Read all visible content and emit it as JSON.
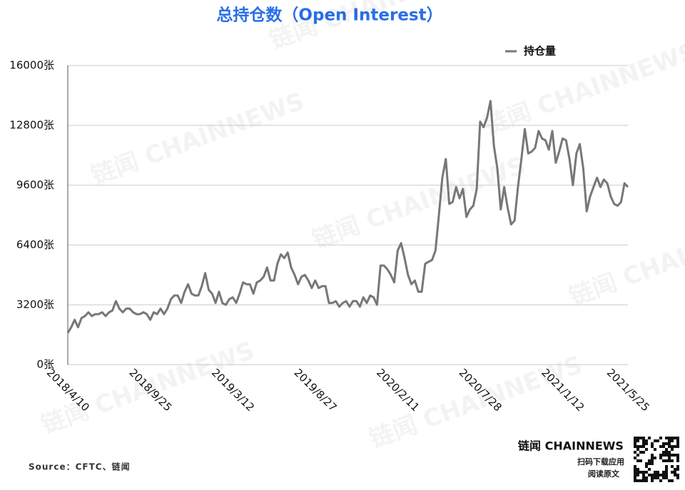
{
  "chart_data": {
    "type": "line",
    "title": "总持仓数（Open Interest）",
    "source": "Source：CFTC、链闻",
    "watermark": "链闻 CHAINNEWS",
    "branding": {
      "logo": "链闻 CHAINNEWS",
      "line1": "扫码下载应用",
      "line2": "阅读原文"
    },
    "legend": "top-right",
    "grid": true,
    "ylim": [
      0,
      16000
    ],
    "yticks": [
      {
        "value": 0,
        "label": "0张"
      },
      {
        "value": 3200,
        "label": "3200张"
      },
      {
        "value": 6400,
        "label": "6400张"
      },
      {
        "value": 9600,
        "label": "9600张"
      },
      {
        "value": 12800,
        "label": "12800张"
      },
      {
        "value": 16000,
        "label": "16000张"
      }
    ],
    "categories": [
      "2018/4/10",
      null,
      null,
      null,
      null,
      null,
      null,
      null,
      null,
      null,
      null,
      null,
      null,
      null,
      null,
      null,
      null,
      null,
      null,
      null,
      null,
      null,
      null,
      null,
      "2018/9/25",
      null,
      null,
      null,
      null,
      null,
      null,
      null,
      null,
      null,
      null,
      null,
      null,
      null,
      null,
      null,
      null,
      null,
      null,
      null,
      null,
      null,
      null,
      null,
      "2019/3/12",
      null,
      null,
      null,
      null,
      null,
      null,
      null,
      null,
      null,
      null,
      null,
      null,
      null,
      null,
      null,
      null,
      null,
      null,
      null,
      null,
      null,
      null,
      null,
      "2019/8/27",
      null,
      null,
      null,
      null,
      null,
      null,
      null,
      null,
      null,
      null,
      null,
      null,
      null,
      null,
      null,
      null,
      null,
      null,
      null,
      null,
      null,
      null,
      null,
      "2020/2/11",
      null,
      null,
      null,
      null,
      null,
      null,
      null,
      null,
      null,
      null,
      null,
      null,
      null,
      null,
      null,
      null,
      null,
      null,
      null,
      null,
      null,
      null,
      null,
      "2020/7/28",
      null,
      null,
      null,
      null,
      null,
      null,
      null,
      null,
      null,
      null,
      null,
      null,
      null,
      null,
      null,
      null,
      null,
      null,
      null,
      null,
      null,
      null,
      null,
      "2021/1/12",
      null,
      null,
      null,
      null,
      null,
      null,
      null,
      null,
      null,
      null,
      null,
      null,
      null,
      null,
      null,
      null,
      null,
      null,
      "2021/5/25"
    ],
    "series": [
      {
        "name": "持仓量",
        "color": "#777777",
        "values": [
          1700,
          2000,
          2400,
          2000,
          2500,
          2600,
          2800,
          2600,
          2700,
          2700,
          2800,
          2600,
          2800,
          2900,
          3400,
          3000,
          2800,
          3000,
          3000,
          2800,
          2700,
          2700,
          2800,
          2700,
          2400,
          2800,
          2700,
          3000,
          2700,
          3000,
          3500,
          3700,
          3700,
          3300,
          3900,
          4300,
          3800,
          3700,
          3700,
          4200,
          4900,
          4000,
          3800,
          3300,
          3900,
          3300,
          3200,
          3500,
          3600,
          3300,
          3800,
          4400,
          4300,
          4300,
          3800,
          4400,
          4500,
          4700,
          5200,
          4500,
          4500,
          5400,
          5900,
          5700,
          6000,
          5200,
          4800,
          4300,
          4700,
          4800,
          4500,
          4100,
          4500,
          4100,
          4200,
          4200,
          3300,
          3300,
          3400,
          3100,
          3300,
          3400,
          3100,
          3400,
          3400,
          3100,
          3600,
          3300,
          3700,
          3600,
          3200,
          5300,
          5300,
          5100,
          4800,
          4400,
          6100,
          6500,
          5700,
          4800,
          4300,
          4500,
          3900,
          3900,
          5400,
          5500,
          5600,
          6100,
          8000,
          10000,
          11000,
          8600,
          8700,
          9500,
          8900,
          9400,
          7900,
          8300,
          8500,
          9400,
          13000,
          12700,
          13200,
          14100,
          11700,
          10500,
          8300,
          9500,
          8400,
          7500,
          7700,
          9500,
          11000,
          12600,
          11300,
          11400,
          11600,
          12500,
          12100,
          12000,
          11500,
          12500,
          10800,
          11400,
          12100,
          12000,
          11000,
          9600,
          11300,
          11800,
          10500,
          8200,
          9000,
          9500,
          10000,
          9500,
          9900,
          9700,
          9000,
          8600,
          8500,
          8700,
          9700,
          9500
        ]
      }
    ]
  }
}
